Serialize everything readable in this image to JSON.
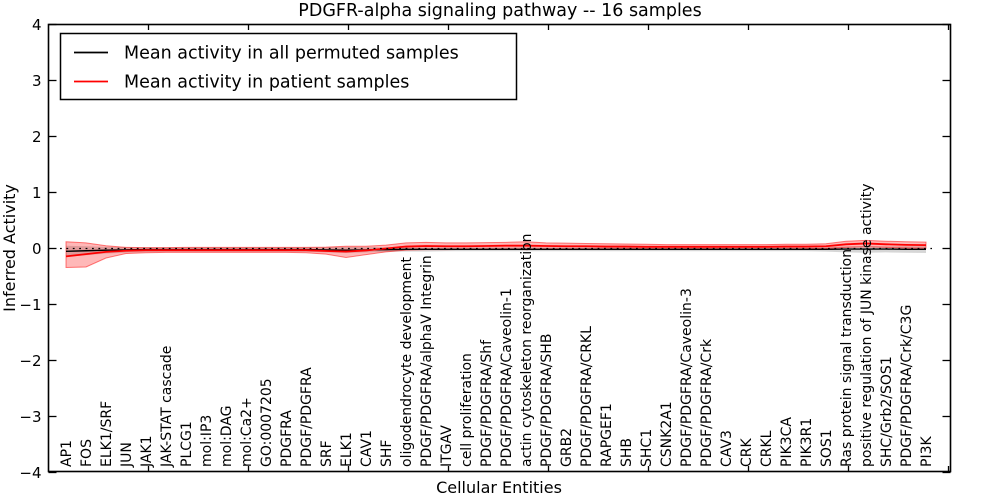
{
  "chart_data": {
    "type": "line",
    "title": "PDGFR-alpha signaling pathway -- 16 samples",
    "xlabel": "Cellular Entities",
    "ylabel": "Inferred Activity",
    "ylim": [
      -4,
      4
    ],
    "yticks": [
      4,
      3,
      2,
      1,
      0,
      -1,
      -2,
      -3,
      -4
    ],
    "grid": false,
    "legend_position": "upper left",
    "zero_line": {
      "y": 0,
      "style": "dotted",
      "color": "#000000"
    },
    "categories": [
      "AP1",
      "FOS",
      "ELK1/SRF",
      "JUN",
      "JAK1",
      "JAK-STAT cascade",
      "PLCG1",
      "mol:IP3",
      "mol:DAG",
      "mol:Ca2+",
      "GO:0007205",
      "PDGFRA",
      "PDGF/PDGFRA",
      "SRF",
      "ELK1",
      "CAV1",
      "SHF",
      "oligodendrocyte development",
      "PDGF/PDGFRA/alphaV Integrin",
      "ITGAV",
      "cell proliferation",
      "PDGF/PDGFRA/Shf",
      "PDGF/PDGFRA/Caveolin-1",
      "actin cytoskeleton reorganization",
      "PDGF/PDGFRA/SHB",
      "GRB2",
      "PDGF/PDGFRA/CRKL",
      "RAPGEF1",
      "SHB",
      "SHC1",
      "CSNK2A1",
      "PDGF/PDGFRA/Caveolin-3",
      "PDGF/PDGFRA/Crk",
      "CAV3",
      "CRK",
      "CRKL",
      "PIK3CA",
      "PIK3R1",
      "SOS1",
      "Ras protein signal transduction",
      "positive regulation of JUN kinase activity",
      "SHC/Grb2/SOS1",
      "PDGF/PDGFRA/Crk/C3G",
      "PI3K"
    ],
    "series": [
      {
        "name": "Mean activity in all permuted samples",
        "color": "#000000",
        "band_fill": "rgba(0,0,0,0.16)",
        "band_edge": "rgba(0,0,0,0.25)",
        "values": [
          -0.05,
          -0.04,
          -0.03,
          -0.025,
          -0.02,
          -0.02,
          -0.02,
          -0.02,
          -0.02,
          -0.02,
          -0.02,
          -0.02,
          -0.02,
          -0.025,
          -0.03,
          -0.025,
          -0.02,
          -0.015,
          -0.015,
          -0.015,
          -0.015,
          -0.015,
          -0.015,
          -0.015,
          -0.015,
          -0.015,
          -0.015,
          -0.015,
          -0.015,
          -0.015,
          -0.015,
          -0.015,
          -0.015,
          -0.015,
          -0.015,
          -0.015,
          -0.015,
          -0.015,
          -0.015,
          -0.01,
          -0.01,
          -0.01,
          -0.015,
          -0.015
        ],
        "band_upper": [
          0.05,
          0.04,
          0.03,
          0.025,
          0.02,
          0.02,
          0.02,
          0.02,
          0.02,
          0.02,
          0.02,
          0.02,
          0.02,
          0.025,
          0.03,
          0.025,
          0.02,
          0.02,
          0.02,
          0.02,
          0.02,
          0.02,
          0.02,
          0.02,
          0.02,
          0.02,
          0.02,
          0.02,
          0.02,
          0.02,
          0.02,
          0.02,
          0.02,
          0.02,
          0.02,
          0.02,
          0.02,
          0.02,
          0.025,
          0.04,
          0.045,
          0.04,
          0.04,
          0.04
        ],
        "band_lower": [
          -0.15,
          -0.12,
          -0.09,
          -0.075,
          -0.065,
          -0.06,
          -0.06,
          -0.06,
          -0.06,
          -0.06,
          -0.06,
          -0.06,
          -0.06,
          -0.07,
          -0.08,
          -0.07,
          -0.06,
          -0.055,
          -0.055,
          -0.05,
          -0.05,
          -0.05,
          -0.05,
          -0.05,
          -0.05,
          -0.05,
          -0.05,
          -0.05,
          -0.05,
          -0.05,
          -0.05,
          -0.05,
          -0.05,
          -0.05,
          -0.05,
          -0.05,
          -0.05,
          -0.05,
          -0.055,
          -0.07,
          -0.075,
          -0.07,
          -0.075,
          -0.08
        ]
      },
      {
        "name": "Mean activity in patient samples",
        "color": "#ff0000",
        "band_fill": "rgba(255,0,0,0.28)",
        "band_edge": "rgba(255,0,0,0.5)",
        "values": [
          -0.14,
          -0.1,
          -0.06,
          -0.04,
          -0.03,
          -0.03,
          -0.03,
          -0.03,
          -0.03,
          -0.03,
          -0.03,
          -0.03,
          -0.03,
          -0.045,
          -0.055,
          -0.035,
          0.0,
          0.035,
          0.045,
          0.04,
          0.04,
          0.045,
          0.05,
          0.05,
          0.045,
          0.04,
          0.04,
          0.035,
          0.035,
          0.03,
          0.03,
          0.03,
          0.03,
          0.03,
          0.03,
          0.03,
          0.035,
          0.035,
          0.04,
          0.075,
          0.09,
          0.075,
          0.065,
          0.06
        ],
        "band_upper": [
          0.12,
          0.1,
          0.05,
          0.02,
          0.015,
          0.015,
          0.02,
          0.02,
          0.02,
          0.02,
          0.02,
          0.02,
          0.02,
          0.025,
          0.04,
          0.04,
          0.06,
          0.1,
          0.11,
          0.1,
          0.1,
          0.105,
          0.11,
          0.12,
          0.1,
          0.095,
          0.09,
          0.085,
          0.08,
          0.075,
          0.07,
          0.07,
          0.07,
          0.07,
          0.07,
          0.07,
          0.075,
          0.075,
          0.085,
          0.13,
          0.145,
          0.13,
          0.12,
          0.115
        ],
        "band_lower": [
          -0.34,
          -0.33,
          -0.17,
          -0.09,
          -0.075,
          -0.07,
          -0.07,
          -0.07,
          -0.07,
          -0.07,
          -0.07,
          -0.07,
          -0.075,
          -0.1,
          -0.16,
          -0.11,
          -0.06,
          -0.03,
          -0.02,
          -0.02,
          -0.015,
          -0.015,
          -0.01,
          -0.02,
          -0.01,
          -0.01,
          -0.01,
          -0.01,
          -0.005,
          -0.005,
          -0.005,
          -0.005,
          -0.005,
          -0.005,
          -0.01,
          -0.01,
          -0.01,
          -0.005,
          0.0,
          0.02,
          0.03,
          0.02,
          0.01,
          0.005
        ]
      }
    ]
  }
}
